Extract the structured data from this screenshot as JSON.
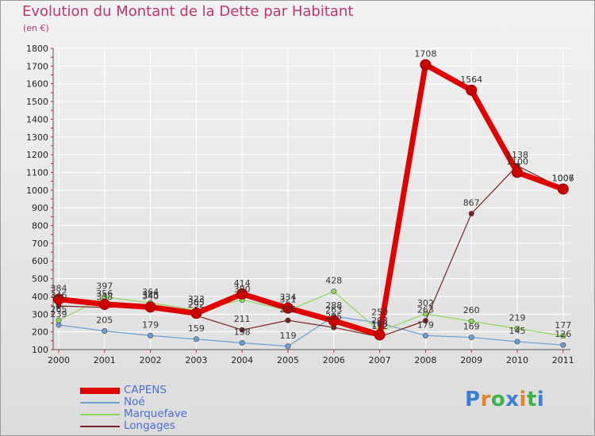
{
  "header": {
    "title": "Evolution du Montant de la Dette par Habitant",
    "unit": "(en €)"
  },
  "logo": {
    "text": "Proxiti",
    "colors": [
      "#3a7fd0",
      "#e8822a",
      "#3fb24a",
      "#3a7fd0",
      "#e8822a",
      "#3fb24a",
      "#3a7fd0"
    ]
  },
  "chart_data": {
    "type": "line",
    "title": "Evolution du Montant de la Dette par Habitant",
    "ylabel": "(en €)",
    "xlabel": "",
    "categories": [
      "2000",
      "2001",
      "2002",
      "2003",
      "2004",
      "2005",
      "2006",
      "2007",
      "2008",
      "2009",
      "2010",
      "2011"
    ],
    "ylim": [
      100,
      1800
    ],
    "yticks": [
      100,
      200,
      300,
      400,
      500,
      600,
      700,
      800,
      900,
      1000,
      1100,
      1200,
      1300,
      1400,
      1500,
      1600,
      1700,
      1800
    ],
    "grid": true,
    "legend_position": "bottom-left",
    "series": [
      {
        "name": "CAPENS",
        "color": "#e00000",
        "values": [
          384,
          356,
          340,
          305,
          414,
          334,
          263,
          183,
          1708,
          1564,
          1100,
          1006
        ]
      },
      {
        "name": "Noé",
        "color": "#6c9fcf",
        "values": [
          239,
          205,
          179,
          159,
          138,
          119,
          288,
          250,
          179,
          169,
          145,
          126
        ]
      },
      {
        "name": "Marquefave",
        "color": "#8ed65c",
        "values": [
          265,
          397,
          364,
          323,
          380,
          321,
          428,
          203,
          302,
          260,
          219,
          177
        ]
      },
      {
        "name": "Longages",
        "color": "#7a2020",
        "values": [
          346,
          338,
          345,
          292,
          211,
          265,
          225,
          172,
          263,
          867,
          1138,
          1007
        ]
      }
    ]
  }
}
